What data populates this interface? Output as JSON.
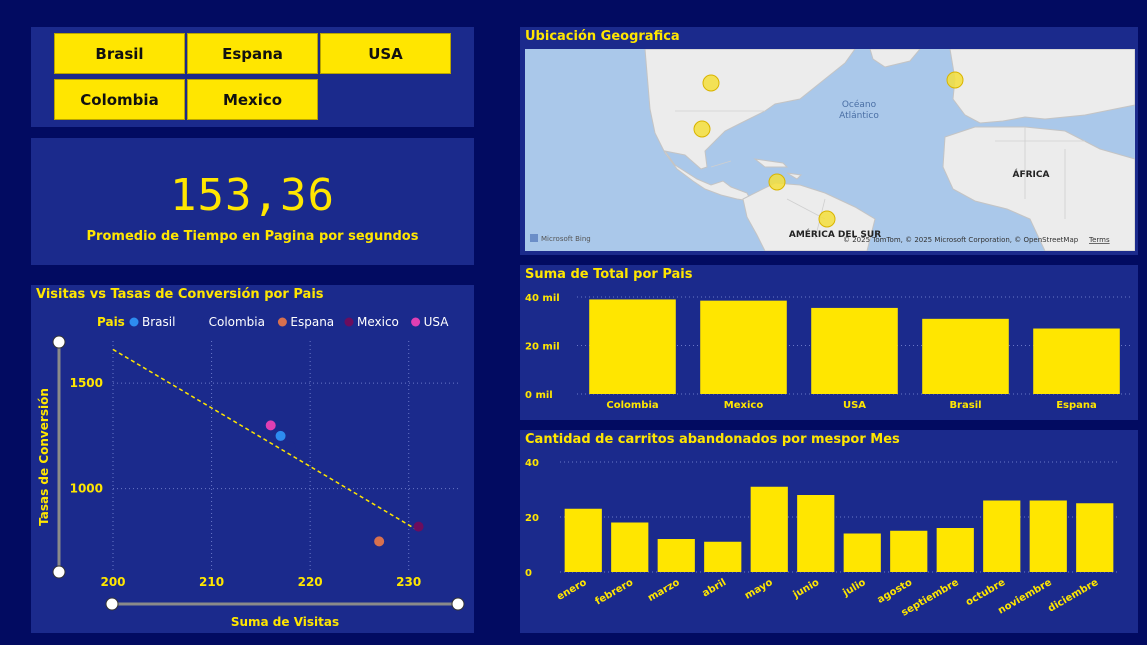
{
  "slicer": {
    "buttons": [
      "Brasil",
      "Espana",
      "USA",
      "Colombia",
      "Mexico"
    ]
  },
  "kpi": {
    "value": "153,36",
    "label": "Promedio de Tiempo en Pagina por segundos"
  },
  "map": {
    "title": "Ubicación Geografica",
    "ocean_label_1": "Océano",
    "ocean_label_2": "Atlántico",
    "africa_label": "ÁFRICA",
    "south_america_label": "AMÉRICA DEL SUR",
    "bing_logo": "Microsoft Bing",
    "attribution": "© 2025 TomTom, © 2025 Microsoft Corporation, © OpenStreetMap",
    "terms": "Terms",
    "colors": {
      "water": "#aac8ea",
      "land": "#ececec",
      "bubble": "#f5df3c"
    }
  },
  "scatter": {
    "title": "Visitas vs Tasas de Conversión por Pais",
    "legend_title": "Pais",
    "chart_data": {
      "type": "scatter",
      "xlabel": "Suma de Visitas",
      "ylabel": "Tasas de Conversión",
      "xlim": [
        200,
        235
      ],
      "ylim": [
        600,
        1700
      ],
      "xticks": [
        200,
        210,
        220,
        230
      ],
      "yticks": [
        1000,
        1500
      ],
      "series": [
        {
          "name": "Brasil",
          "color": "#2d8cf0",
          "x": 217,
          "y": 1250
        },
        {
          "name": "Colombia",
          "color": "#1b2a8c",
          "x": 218,
          "y": 1200
        },
        {
          "name": "Espana",
          "color": "#d8704e",
          "x": 227,
          "y": 750
        },
        {
          "name": "Mexico",
          "color": "#6b0d5e",
          "x": 231,
          "y": 820
        },
        {
          "name": "USA",
          "color": "#e03fb3",
          "x": 216,
          "y": 1300
        }
      ],
      "trendline": {
        "x": [
          200,
          231
        ],
        "y": [
          1660,
          800
        ]
      },
      "grid": true,
      "legend": "top"
    }
  },
  "bars_country": {
    "title": "Suma de Total por Pais",
    "chart_data": {
      "type": "bar",
      "categories": [
        "Colombia",
        "Mexico",
        "USA",
        "Brasil",
        "Espana"
      ],
      "values": [
        39000,
        38500,
        35500,
        31000,
        27000
      ],
      "yticks": [
        "0 mil",
        "20 mil",
        "40 mil"
      ],
      "ytick_values": [
        0,
        20000,
        40000
      ],
      "ylim": [
        0,
        40000
      ],
      "color": "#ffe600"
    }
  },
  "bars_month": {
    "title": "Cantidad de carritos abandonados por mespor Mes",
    "chart_data": {
      "type": "bar",
      "categories": [
        "enero",
        "febrero",
        "marzo",
        "abril",
        "mayo",
        "junio",
        "julio",
        "agosto",
        "septiembre",
        "octubre",
        "noviembre",
        "diciembre"
      ],
      "values": [
        23,
        18,
        12,
        11,
        31,
        28,
        14,
        15,
        16,
        26,
        26,
        25
      ],
      "yticks": [
        "0",
        "20",
        "40"
      ],
      "ytick_values": [
        0,
        20,
        40
      ],
      "ylim": [
        0,
        40
      ],
      "color": "#ffe600"
    }
  }
}
